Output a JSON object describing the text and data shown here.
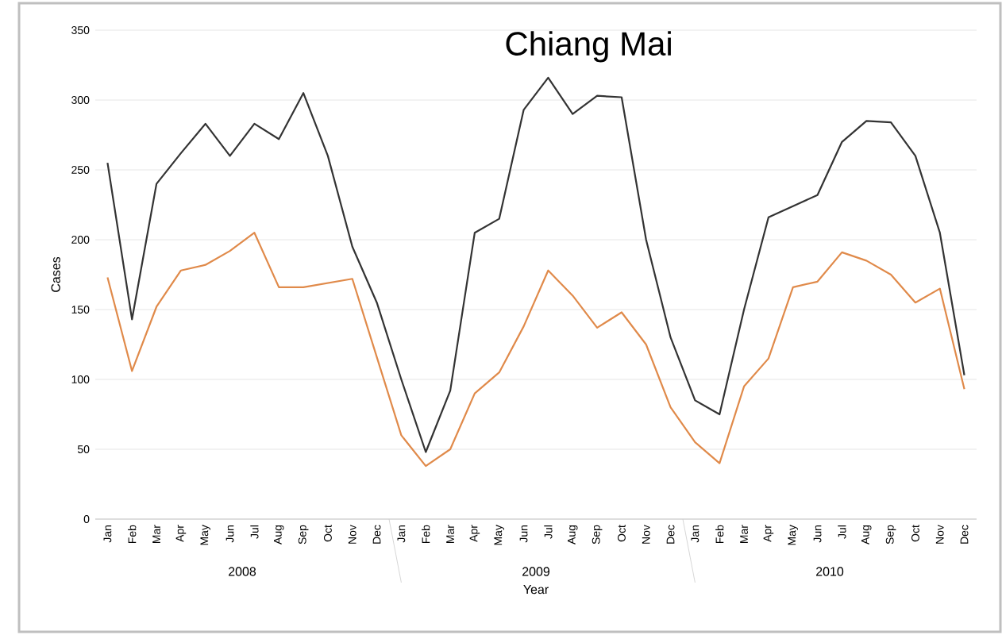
{
  "chart_data": {
    "type": "line",
    "title": "Chiang Mai",
    "xlabel": "Year",
    "ylabel": "Cases",
    "categories": [
      "Jan",
      "Feb",
      "Mar",
      "Apr",
      "May",
      "Jun",
      "Jul",
      "Aug",
      "Sep",
      "Oct",
      "Nov",
      "Dec",
      "Jan",
      "Feb",
      "Mar",
      "Apr",
      "May",
      "Jun",
      "Jul",
      "Aug",
      "Sep",
      "Oct",
      "Nov",
      "Dec",
      "Jan",
      "Feb",
      "Mar",
      "Apr",
      "May",
      "Jun",
      "Jul",
      "Aug",
      "Sep",
      "Oct",
      "Nov",
      "Dec"
    ],
    "annotations": [
      "2008",
      "2009",
      "2010"
    ],
    "series": [
      {
        "color": "#333333",
        "values": [
          255,
          143,
          240,
          262,
          283,
          260,
          283,
          272,
          305,
          260,
          195,
          155,
          100,
          48,
          92,
          205,
          215,
          293,
          316,
          290,
          303,
          302,
          200,
          130,
          85,
          75,
          150,
          216,
          224,
          232,
          270,
          285,
          284,
          260,
          205,
          103
        ]
      },
      {
        "color": "#e08a4a",
        "values": [
          173,
          106,
          152,
          178,
          182,
          192,
          205,
          166,
          166,
          169,
          172,
          116,
          60,
          38,
          50,
          90,
          105,
          138,
          178,
          160,
          137,
          148,
          125,
          80,
          55,
          40,
          95,
          115,
          166,
          170,
          191,
          185,
          175,
          155,
          165,
          93
        ]
      }
    ],
    "ylim": [
      0,
      350
    ],
    "yticks": [
      0,
      50,
      100,
      150,
      200,
      250,
      300,
      350
    ],
    "grid": "y",
    "marker": "none",
    "line_style": "solid"
  }
}
